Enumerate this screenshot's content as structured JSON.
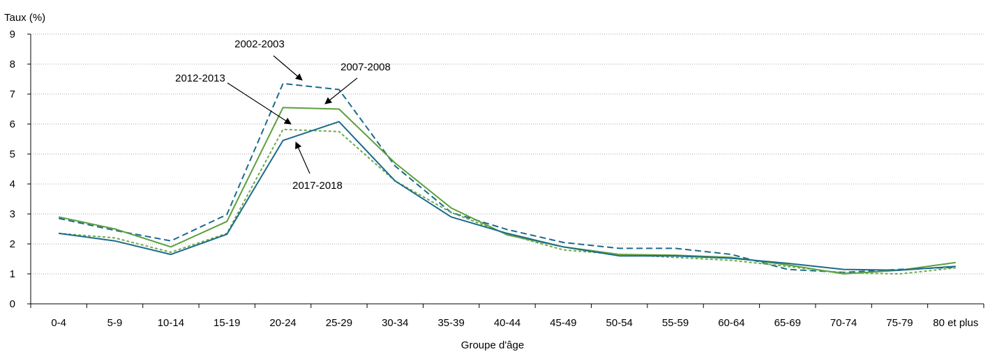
{
  "chart_data": {
    "type": "line",
    "ylabel": "Taux (%)",
    "xlabel": "Groupe d'âge",
    "ylim": [
      0,
      9
    ],
    "yticks": [
      "0",
      "1",
      "2",
      "3",
      "4",
      "5",
      "6",
      "7",
      "8",
      "9"
    ],
    "grid": "horizontal-dotted",
    "categories": [
      "0-4",
      "5-9",
      "10-14",
      "15-19",
      "20-24",
      "25-29",
      "30-34",
      "35-39",
      "40-44",
      "45-49",
      "50-54",
      "55-59",
      "60-64",
      "65-69",
      "70-74",
      "75-79",
      "80 et plus"
    ],
    "series": [
      {
        "name": "2002-2003",
        "color": "#1b6a8c",
        "dash": "dashed",
        "values": [
          2.85,
          2.45,
          2.1,
          2.98,
          7.35,
          7.15,
          4.6,
          3.05,
          2.48,
          2.05,
          1.85,
          1.85,
          1.65,
          1.15,
          1.05,
          1.15,
          1.22
        ]
      },
      {
        "name": "2007-2008",
        "color": "#5b9f3c",
        "dash": "solid",
        "values": [
          2.9,
          2.5,
          1.9,
          2.75,
          6.55,
          6.5,
          4.7,
          3.2,
          2.3,
          1.9,
          1.65,
          1.62,
          1.55,
          1.3,
          1.0,
          1.12,
          1.38
        ]
      },
      {
        "name": "2012-2013",
        "color": "#6aab48",
        "dash": "dotted",
        "values": [
          2.35,
          2.2,
          1.72,
          2.35,
          5.82,
          5.75,
          4.1,
          3.05,
          2.32,
          1.8,
          1.65,
          1.55,
          1.45,
          1.25,
          1.03,
          1.0,
          1.2
        ]
      },
      {
        "name": "2017-2018",
        "color": "#1b6a8c",
        "dash": "solid",
        "values": [
          2.35,
          2.1,
          1.65,
          2.32,
          5.45,
          6.08,
          4.1,
          2.9,
          2.35,
          1.9,
          1.6,
          1.6,
          1.52,
          1.35,
          1.15,
          1.12,
          1.25
        ]
      }
    ],
    "annotations": [
      {
        "label": "2002-2003",
        "series_index": 0,
        "category_index": 4
      },
      {
        "label": "2007-2008",
        "series_index": 1,
        "category_index": 5
      },
      {
        "label": "2012-2013",
        "series_index": 2,
        "category_index": 4
      },
      {
        "label": "2017-2018",
        "series_index": 3,
        "category_index": 4
      }
    ]
  }
}
